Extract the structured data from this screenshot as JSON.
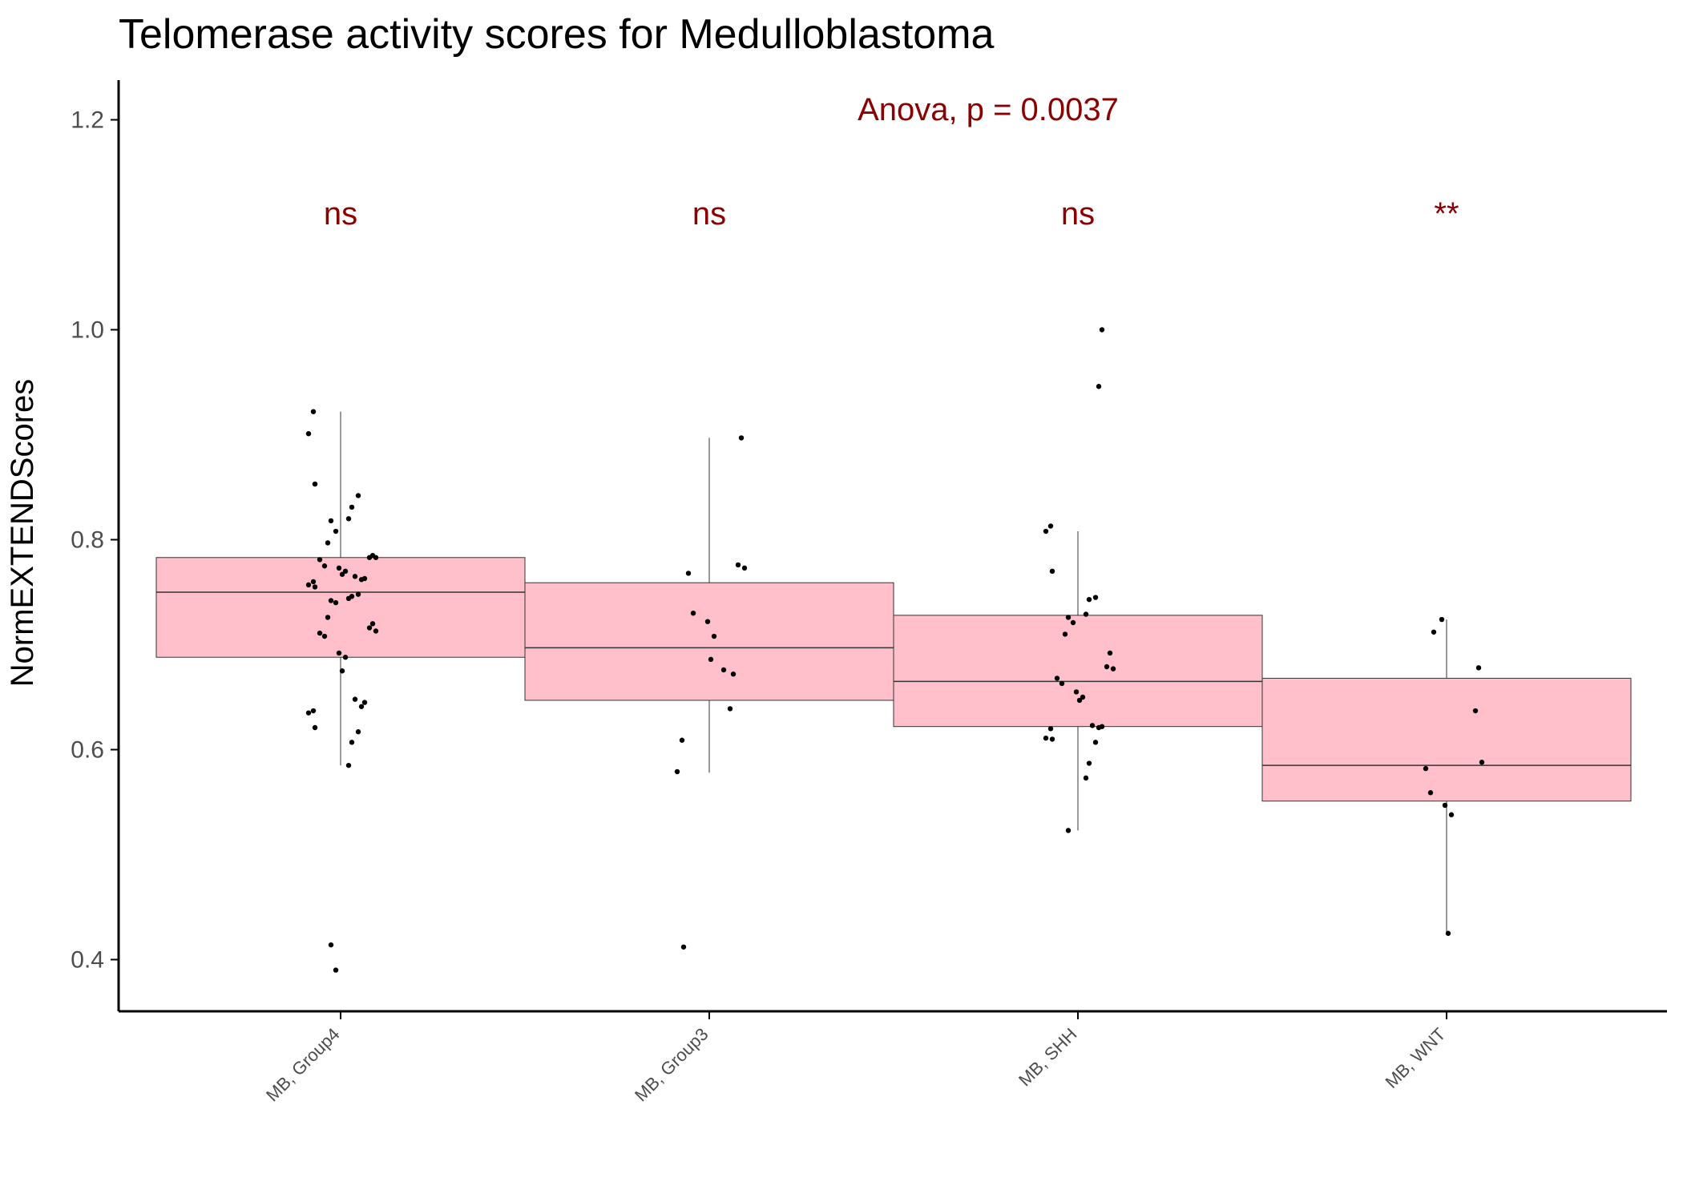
{
  "colors": {
    "box_fill": "#ffc0cb",
    "box_stroke": "#333333",
    "annotation": "#8b0000",
    "axis": "#000000",
    "point": "#000000"
  },
  "chart_data": {
    "type": "box",
    "title": "Telomerase activity scores for Medulloblastoma",
    "xlabel": "",
    "ylabel": "NormEXTENDScores",
    "ylim": [
      0.35,
      1.24
    ],
    "yticks": [
      0.4,
      0.6,
      0.8,
      1.0,
      1.2
    ],
    "ytick_labels": [
      "0.4",
      "0.6",
      "0.8",
      "1.0",
      "1.2"
    ],
    "categories": [
      "MB, Group4",
      "MB, Group3",
      "MB, SHH",
      "MB, WNT"
    ],
    "grid": false,
    "legend": "none",
    "test_label": "Anova, p = 0.0037",
    "boxes": [
      {
        "q1": 0.688,
        "median": 0.75,
        "q3": 0.783,
        "whisker_low": 0.585,
        "whisker_high": 0.922
      },
      {
        "q1": 0.647,
        "median": 0.697,
        "q3": 0.759,
        "whisker_low": 0.578,
        "whisker_high": 0.897
      },
      {
        "q1": 0.622,
        "median": 0.665,
        "q3": 0.728,
        "whisker_low": 0.523,
        "whisker_high": 0.808
      },
      {
        "q1": 0.551,
        "median": 0.585,
        "q3": 0.668,
        "whisker_low": 0.425,
        "whisker_high": 0.724
      }
    ],
    "significance": [
      "ns",
      "ns",
      "ns",
      "**"
    ],
    "points": [
      [
        0.922,
        0.901,
        0.853,
        0.842,
        0.831,
        0.82,
        0.818,
        0.808,
        0.797,
        0.785,
        0.783,
        0.783,
        0.781,
        0.775,
        0.773,
        0.77,
        0.767,
        0.765,
        0.763,
        0.762,
        0.76,
        0.757,
        0.755,
        0.748,
        0.746,
        0.744,
        0.742,
        0.74,
        0.726,
        0.72,
        0.716,
        0.713,
        0.711,
        0.708,
        0.692,
        0.688,
        0.675,
        0.648,
        0.645,
        0.641,
        0.637,
        0.635,
        0.621,
        0.617,
        0.607,
        0.585,
        0.414,
        0.39
      ],
      [
        0.897,
        0.776,
        0.773,
        0.768,
        0.73,
        0.722,
        0.708,
        0.686,
        0.676,
        0.672,
        0.639,
        0.609,
        0.579,
        0.412
      ],
      [
        1.0,
        0.946,
        0.813,
        0.808,
        0.77,
        0.745,
        0.743,
        0.729,
        0.726,
        0.721,
        0.71,
        0.692,
        0.679,
        0.677,
        0.668,
        0.663,
        0.655,
        0.65,
        0.647,
        0.623,
        0.622,
        0.621,
        0.62,
        0.611,
        0.61,
        0.607,
        0.587,
        0.573,
        0.523
      ],
      [
        0.724,
        0.712,
        0.678,
        0.637,
        0.588,
        0.582,
        0.559,
        0.547,
        0.538,
        0.425
      ]
    ]
  }
}
